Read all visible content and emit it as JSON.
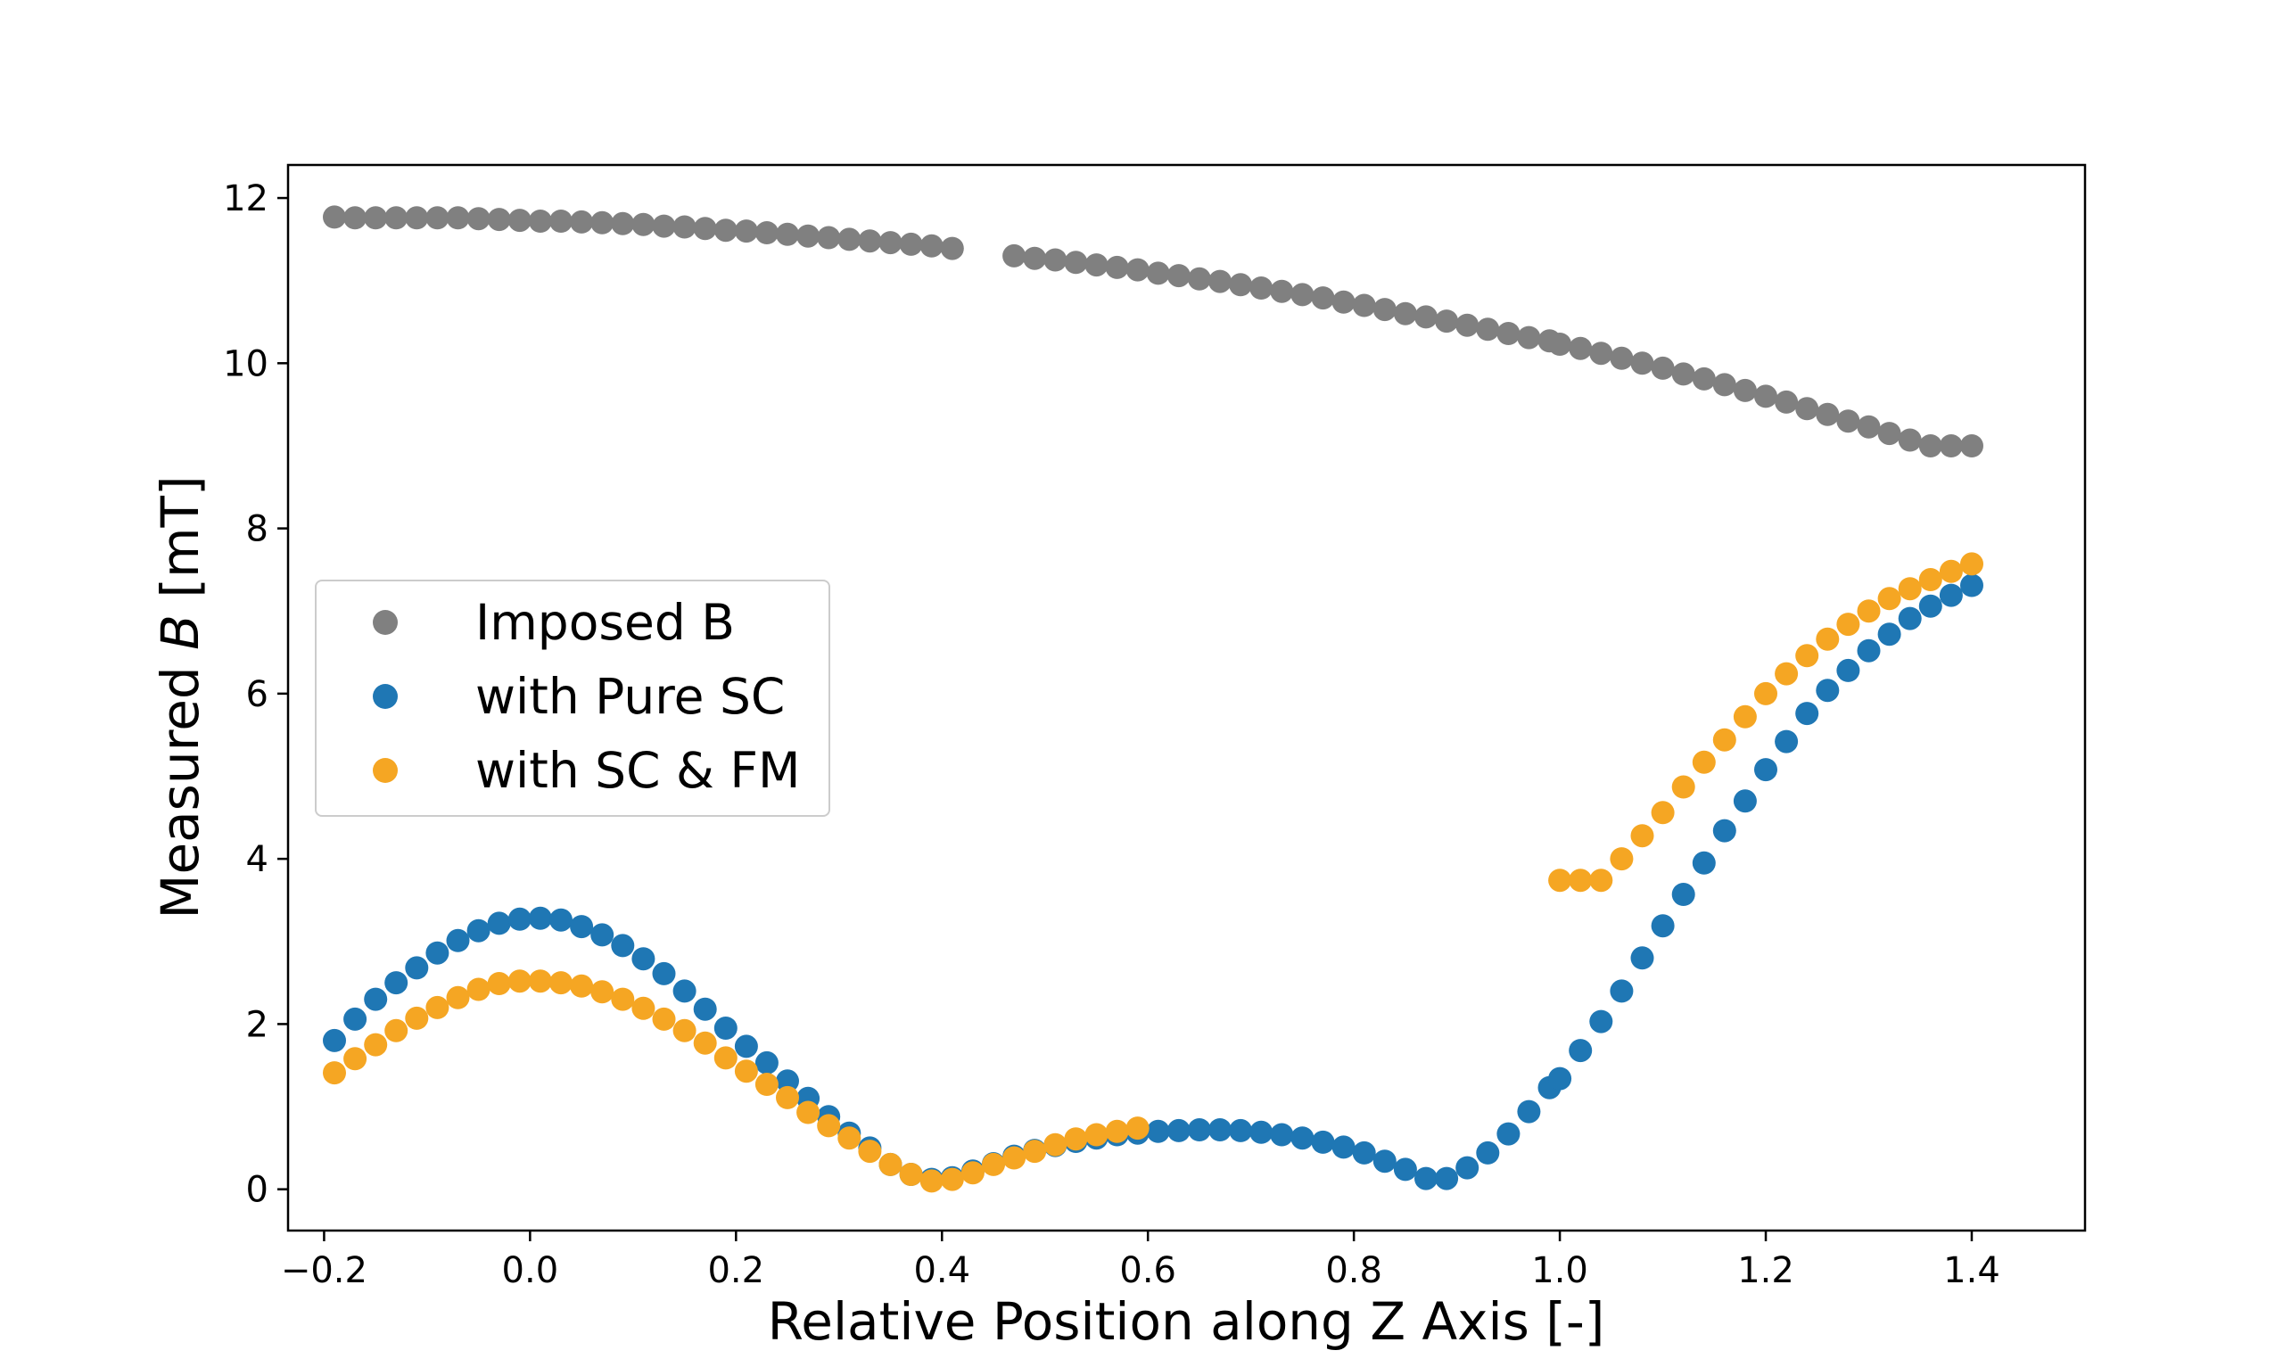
{
  "chart_data": {
    "type": "scatter",
    "xlabel": "Relative Position along Z Axis [-]",
    "ylabel_prefix": "Measured ",
    "ylabel_var": "B",
    "ylabel_suffix": " [mT]",
    "xlim": [
      -0.235,
      1.51
    ],
    "ylim": [
      -0.5,
      12.4
    ],
    "xticks": [
      -0.2,
      0.0,
      0.2,
      0.4,
      0.6,
      0.8,
      1.0,
      1.2,
      1.4
    ],
    "xtick_labels": [
      "−0.2",
      "0.0",
      "0.2",
      "0.4",
      "0.6",
      "0.8",
      "1.0",
      "1.2",
      "1.4"
    ],
    "yticks": [
      0,
      2,
      4,
      6,
      8,
      10,
      12
    ],
    "ytick_labels": [
      "0",
      "2",
      "4",
      "6",
      "8",
      "10",
      "12"
    ],
    "grid": false,
    "legend_position": "center-left",
    "series": [
      {
        "name": "Imposed B",
        "color": "#808080",
        "x": [
          -0.19,
          -0.17,
          -0.15,
          -0.13,
          -0.11,
          -0.09,
          -0.07,
          -0.05,
          -0.03,
          -0.01,
          0.01,
          0.03,
          0.05,
          0.07,
          0.09,
          0.11,
          0.13,
          0.15,
          0.17,
          0.19,
          0.21,
          0.23,
          0.25,
          0.27,
          0.29,
          0.31,
          0.33,
          0.35,
          0.37,
          0.39,
          0.41,
          0.47,
          0.49,
          0.51,
          0.53,
          0.55,
          0.57,
          0.59,
          0.61,
          0.63,
          0.65,
          0.67,
          0.69,
          0.71,
          0.73,
          0.75,
          0.77,
          0.79,
          0.81,
          0.83,
          0.85,
          0.87,
          0.89,
          0.91,
          0.93,
          0.95,
          0.97,
          0.99,
          1.0,
          1.02,
          1.04,
          1.06,
          1.08,
          1.1,
          1.12,
          1.14,
          1.16,
          1.18,
          1.2,
          1.22,
          1.24,
          1.26,
          1.28,
          1.3,
          1.32,
          1.34,
          1.36,
          1.38,
          1.4
        ],
        "y": [
          11.77,
          11.76,
          11.76,
          11.76,
          11.76,
          11.76,
          11.76,
          11.75,
          11.74,
          11.73,
          11.72,
          11.72,
          11.71,
          11.7,
          11.69,
          11.68,
          11.66,
          11.65,
          11.63,
          11.61,
          11.6,
          11.58,
          11.56,
          11.54,
          11.52,
          11.5,
          11.48,
          11.46,
          11.44,
          11.42,
          11.39,
          11.3,
          11.27,
          11.25,
          11.22,
          11.19,
          11.16,
          11.13,
          11.09,
          11.06,
          11.02,
          10.99,
          10.95,
          10.91,
          10.87,
          10.83,
          10.79,
          10.74,
          10.7,
          10.65,
          10.6,
          10.56,
          10.51,
          10.46,
          10.41,
          10.36,
          10.31,
          10.27,
          10.23,
          10.18,
          10.12,
          10.06,
          10.0,
          9.94,
          9.87,
          9.81,
          9.74,
          9.67,
          9.6,
          9.53,
          9.45,
          9.38,
          9.3,
          9.23,
          9.15,
          9.07,
          9.0,
          9.0,
          9.0
        ]
      },
      {
        "name": "with Pure SC",
        "color": "#1f77b4",
        "x": [
          -0.19,
          -0.17,
          -0.15,
          -0.13,
          -0.11,
          -0.09,
          -0.07,
          -0.05,
          -0.03,
          -0.01,
          0.01,
          0.03,
          0.05,
          0.07,
          0.09,
          0.11,
          0.13,
          0.15,
          0.17,
          0.19,
          0.21,
          0.23,
          0.25,
          0.27,
          0.29,
          0.31,
          0.33,
          0.35,
          0.37,
          0.39,
          0.41,
          0.43,
          0.45,
          0.47,
          0.49,
          0.51,
          0.53,
          0.55,
          0.57,
          0.59,
          0.61,
          0.63,
          0.65,
          0.67,
          0.69,
          0.71,
          0.73,
          0.75,
          0.77,
          0.79,
          0.81,
          0.83,
          0.85,
          0.87,
          0.89,
          0.91,
          0.93,
          0.95,
          0.97,
          0.99,
          1.0,
          1.02,
          1.04,
          1.06,
          1.08,
          1.1,
          1.12,
          1.14,
          1.16,
          1.18,
          1.2,
          1.22,
          1.24,
          1.26,
          1.28,
          1.3,
          1.32,
          1.34,
          1.36,
          1.38,
          1.4
        ],
        "y": [
          1.8,
          2.06,
          2.3,
          2.5,
          2.68,
          2.86,
          3.01,
          3.13,
          3.22,
          3.27,
          3.28,
          3.26,
          3.18,
          3.08,
          2.95,
          2.79,
          2.61,
          2.4,
          2.18,
          1.95,
          1.73,
          1.53,
          1.31,
          1.1,
          0.88,
          0.68,
          0.5,
          0.3,
          0.18,
          0.12,
          0.14,
          0.22,
          0.31,
          0.4,
          0.47,
          0.53,
          0.58,
          0.62,
          0.66,
          0.68,
          0.7,
          0.71,
          0.72,
          0.72,
          0.71,
          0.69,
          0.66,
          0.62,
          0.57,
          0.51,
          0.44,
          0.34,
          0.24,
          0.13,
          0.13,
          0.26,
          0.44,
          0.67,
          0.94,
          1.23,
          1.34,
          1.68,
          2.03,
          2.4,
          2.8,
          3.19,
          3.57,
          3.95,
          4.34,
          4.7,
          5.08,
          5.42,
          5.76,
          6.04,
          6.28,
          6.52,
          6.72,
          6.91,
          7.06,
          7.19,
          7.31
        ]
      },
      {
        "name": "with SC & FM",
        "color": "#f5a623",
        "x": [
          -0.19,
          -0.17,
          -0.15,
          -0.13,
          -0.11,
          -0.09,
          -0.07,
          -0.05,
          -0.03,
          -0.01,
          0.01,
          0.03,
          0.05,
          0.07,
          0.09,
          0.11,
          0.13,
          0.15,
          0.17,
          0.19,
          0.21,
          0.23,
          0.25,
          0.27,
          0.29,
          0.31,
          0.33,
          0.35,
          0.37,
          0.39,
          0.41,
          0.43,
          0.45,
          0.47,
          0.49,
          0.51,
          0.53,
          0.55,
          0.57,
          0.59,
          1.0,
          1.02,
          1.04,
          1.06,
          1.08,
          1.1,
          1.12,
          1.14,
          1.16,
          1.18,
          1.2,
          1.22,
          1.24,
          1.26,
          1.28,
          1.3,
          1.32,
          1.34,
          1.36,
          1.38,
          1.4
        ],
        "y": [
          1.41,
          1.58,
          1.75,
          1.92,
          2.07,
          2.2,
          2.32,
          2.42,
          2.49,
          2.52,
          2.52,
          2.5,
          2.46,
          2.39,
          2.3,
          2.19,
          2.06,
          1.92,
          1.77,
          1.59,
          1.43,
          1.27,
          1.11,
          0.93,
          0.77,
          0.62,
          0.46,
          0.3,
          0.18,
          0.1,
          0.12,
          0.2,
          0.3,
          0.38,
          0.46,
          0.54,
          0.61,
          0.66,
          0.7,
          0.74,
          3.74,
          3.74,
          3.74,
          4.0,
          4.28,
          4.56,
          4.87,
          5.17,
          5.44,
          5.72,
          6.0,
          6.24,
          6.46,
          6.66,
          6.84,
          7.0,
          7.15,
          7.27,
          7.38,
          7.48,
          7.57
        ]
      }
    ]
  }
}
